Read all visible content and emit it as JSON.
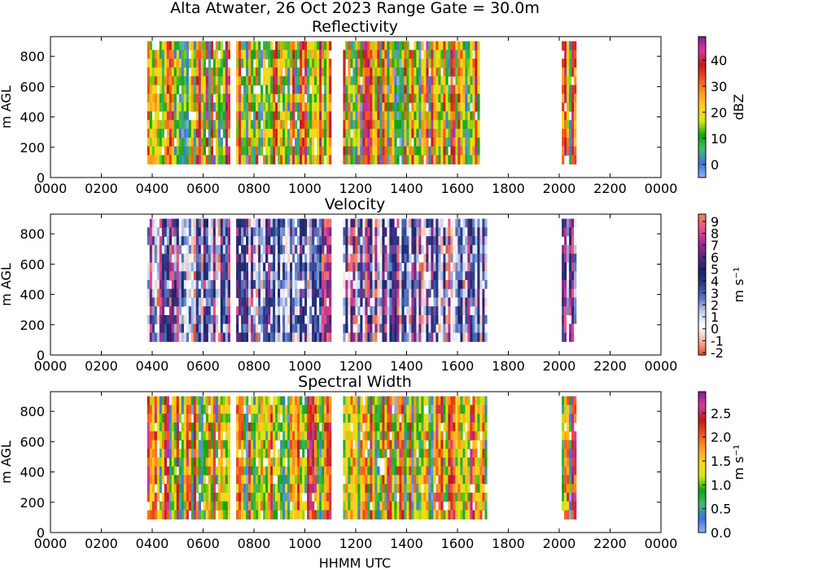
{
  "chart_data": {
    "title": "Alta Atwater, 26 Oct 2023 Range Gate = 30.0m",
    "type": "heatmap",
    "xlabel": "HHMM UTC",
    "x_ticks": [
      "0000",
      "0200",
      "0400",
      "0600",
      "0800",
      "1000",
      "1200",
      "1400",
      "1600",
      "1800",
      "2000",
      "2200",
      "0000"
    ],
    "xlim_hours": [
      0,
      24
    ],
    "ylim_m": [
      0,
      930
    ],
    "y_ticks": [
      0,
      200,
      400,
      600,
      800
    ],
    "ylabel": "m AGL",
    "grid": false,
    "panels": [
      {
        "title": "Reflectivity",
        "cbar_label": "dBZ",
        "cbar_range": [
          -5,
          49
        ],
        "cbar_ticks": [
          "0",
          "10",
          "20",
          "30",
          "40"
        ],
        "cbar_tick_values": [
          0,
          10,
          20,
          30,
          40
        ],
        "colors": [
          "#8cb4f0",
          "#3e6ee0",
          "#3fbc6c",
          "#0ea30e",
          "#d6e812",
          "#ffd21e",
          "#ff9a1e",
          "#f0501e",
          "#c01818",
          "#d23ca0",
          "#821e8c"
        ],
        "coverage_hours": [
          [
            3.8,
            7.0
          ],
          [
            7.3,
            11.0
          ],
          [
            11.5,
            16.8
          ],
          [
            20.1,
            20.6
          ]
        ],
        "height_range_m": [
          90,
          900
        ]
      },
      {
        "title": "Velocity",
        "cbar_label": "m s⁻¹",
        "cbar_range": [
          -2.2,
          9.6
        ],
        "cbar_ticks": [
          "-2",
          "-1",
          "0",
          "1",
          "2",
          "3",
          "4",
          "5",
          "6",
          "7",
          "8",
          "9"
        ],
        "cbar_tick_values": [
          -2,
          -1,
          0,
          1,
          2,
          3,
          4,
          5,
          6,
          7,
          8,
          9
        ],
        "colors": [
          "#e0502a",
          "#f6b4a0",
          "#ffffff",
          "#c8d2ec",
          "#5a7ac2",
          "#2a3c8a",
          "#1a2368",
          "#5a287a",
          "#a42896",
          "#e8508a",
          "#f08a50"
        ],
        "coverage_hours": [
          [
            3.8,
            7.0
          ],
          [
            7.3,
            11.0
          ],
          [
            11.5,
            17.1
          ],
          [
            20.1,
            20.6
          ]
        ],
        "height_range_m": [
          90,
          900
        ]
      },
      {
        "title": "Spectral Width",
        "cbar_label": "m s⁻¹",
        "cbar_range": [
          0,
          2.95
        ],
        "cbar_ticks": [
          "0.0",
          "0.5",
          "1.0",
          "1.5",
          "2.0",
          "2.5"
        ],
        "cbar_tick_values": [
          0.0,
          0.5,
          1.0,
          1.5,
          2.0,
          2.5
        ],
        "colors": [
          "#8cb4f0",
          "#3e6ee0",
          "#3fbc6c",
          "#0ea30e",
          "#d6e812",
          "#ffd21e",
          "#ff9a1e",
          "#f0501e",
          "#c01818",
          "#d23ca0",
          "#821e8c"
        ],
        "coverage_hours": [
          [
            3.8,
            7.0
          ],
          [
            7.3,
            11.0
          ],
          [
            11.5,
            17.1
          ],
          [
            20.1,
            20.6
          ]
        ],
        "height_range_m": [
          90,
          900
        ]
      }
    ]
  }
}
